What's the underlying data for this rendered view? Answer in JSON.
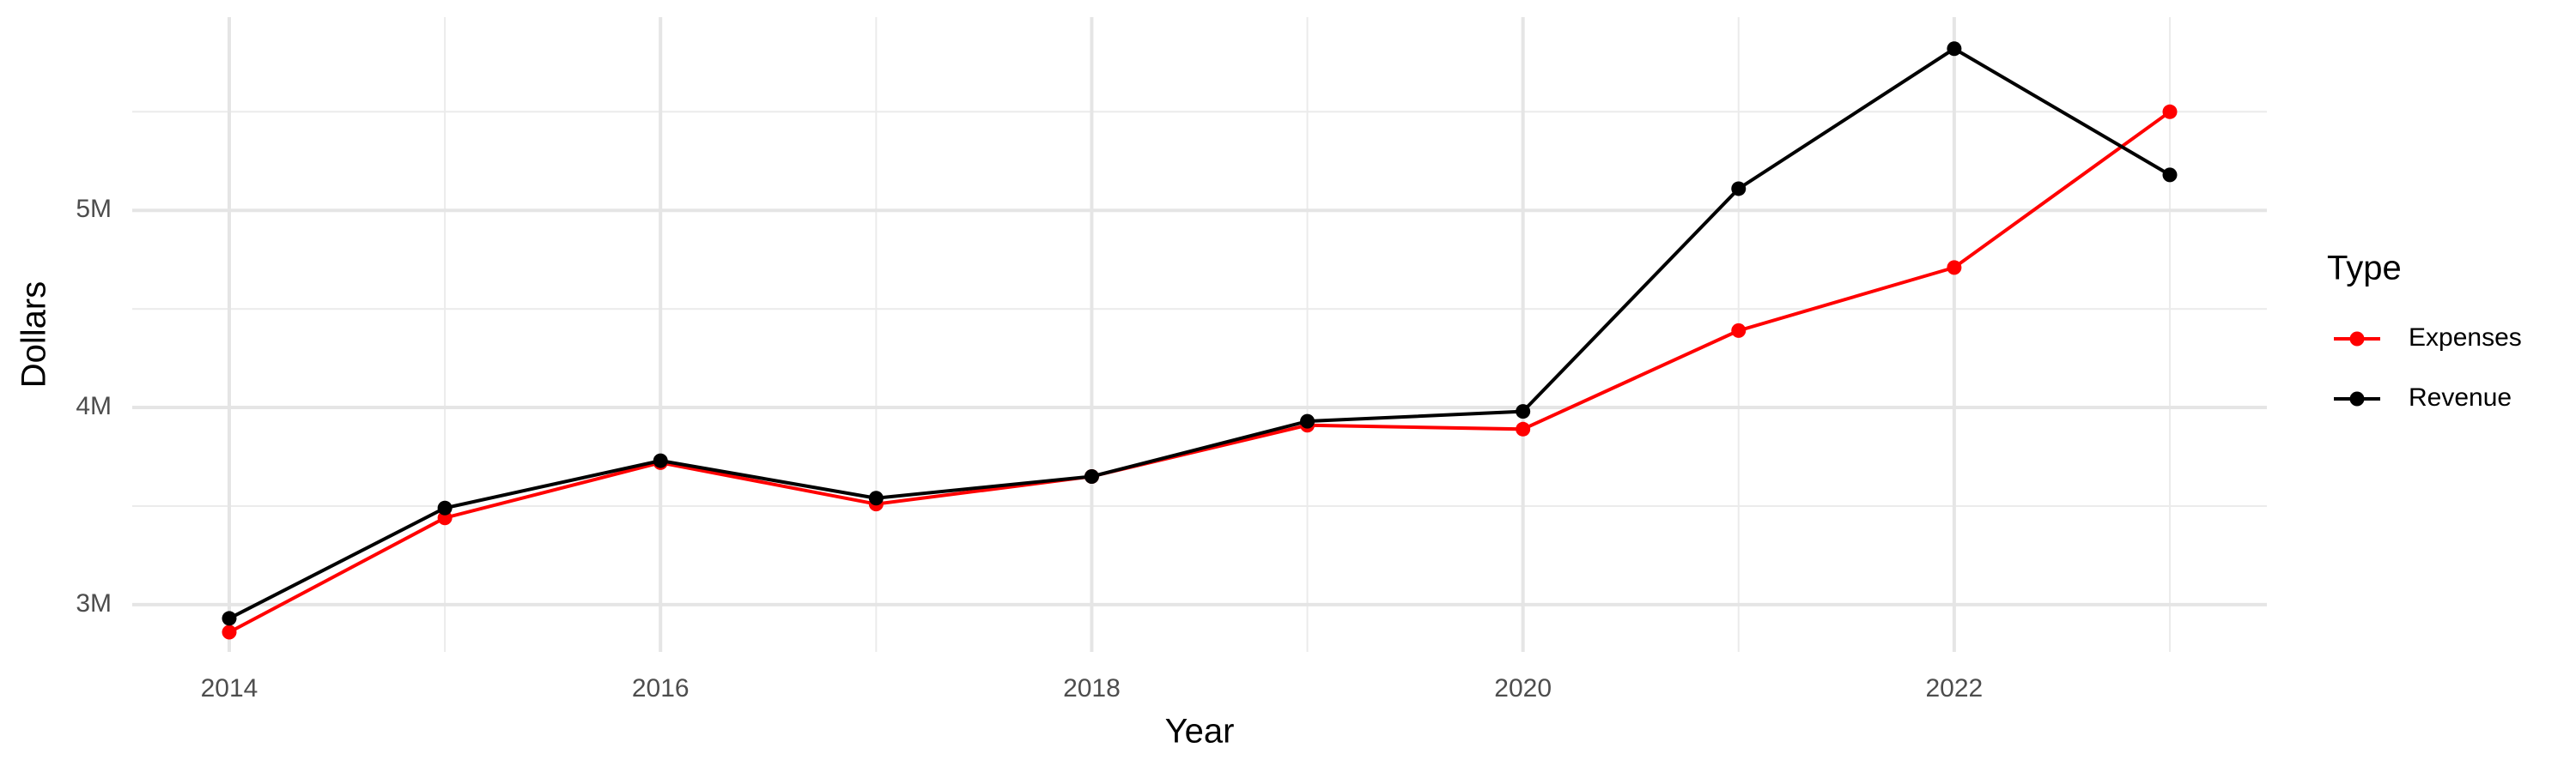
{
  "chart_data": {
    "type": "line",
    "x_label": "Year",
    "y_label": "Dollars",
    "x": [
      2014,
      2015,
      2016,
      2017,
      2018,
      2019,
      2020,
      2021,
      2022,
      2023
    ],
    "series": [
      {
        "name": "Expenses",
        "color": "#ff0000",
        "values": [
          2860000,
          3440000,
          3720000,
          3510000,
          3650000,
          3910000,
          3890000,
          4390000,
          4710000,
          5500000
        ]
      },
      {
        "name": "Revenue",
        "color": "#000000",
        "values": [
          2930000,
          3490000,
          3730000,
          3540000,
          3650000,
          3930000,
          3980000,
          5110000,
          5820000,
          5180000
        ]
      }
    ],
    "xlim": [
      2013.55,
      2023.45
    ],
    "xticks": [
      2014,
      2016,
      2018,
      2020,
      2022
    ],
    "ylim": [
      2760000,
      5980000
    ],
    "yticks": [
      {
        "value": 3000000,
        "label": "3M"
      },
      {
        "value": 4000000,
        "label": "4M"
      },
      {
        "value": 5000000,
        "label": "5M"
      }
    ],
    "legend_title": "Type",
    "legend": "right",
    "grid": true
  }
}
